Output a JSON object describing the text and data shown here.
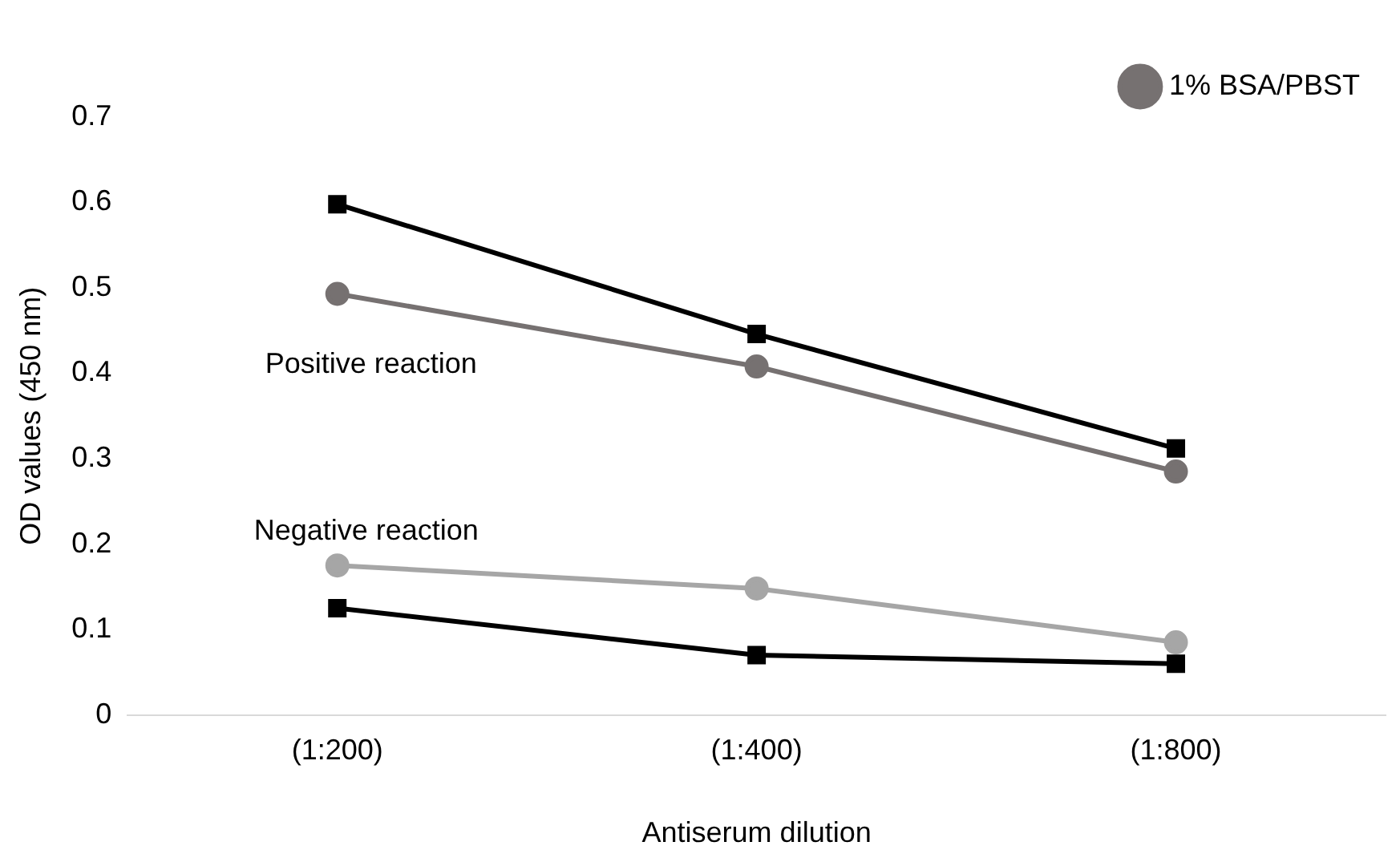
{
  "chart_data": {
    "type": "line",
    "xlabel": "Antiserum dilution",
    "ylabel": "OD values (450 nm)",
    "categories": [
      "(1:200)",
      "(1:400)",
      "(1:800)"
    ],
    "series": [
      {
        "name": "1% BSA/PBST",
        "color": "#767171",
        "marker": "circle",
        "values": [
          0.493,
          0.408,
          0.285
        ]
      },
      {
        "color": "#000000",
        "marker": "square",
        "values": [
          0.598,
          0.446,
          0.312
        ]
      },
      {
        "color": "#a6a6a6",
        "marker": "circle",
        "values": [
          0.175,
          0.148,
          0.085
        ]
      },
      {
        "color": "#000000",
        "marker": "square",
        "values": [
          0.125,
          0.07,
          0.06
        ]
      }
    ],
    "ylim": [
      0,
      0.7
    ],
    "yticks": [
      0,
      0.1,
      0.2,
      0.3,
      0.4,
      0.5,
      0.6,
      0.7
    ],
    "grid": false,
    "legend": "top right",
    "annotations": [
      "Positive reaction",
      "Negative reaction"
    ]
  }
}
